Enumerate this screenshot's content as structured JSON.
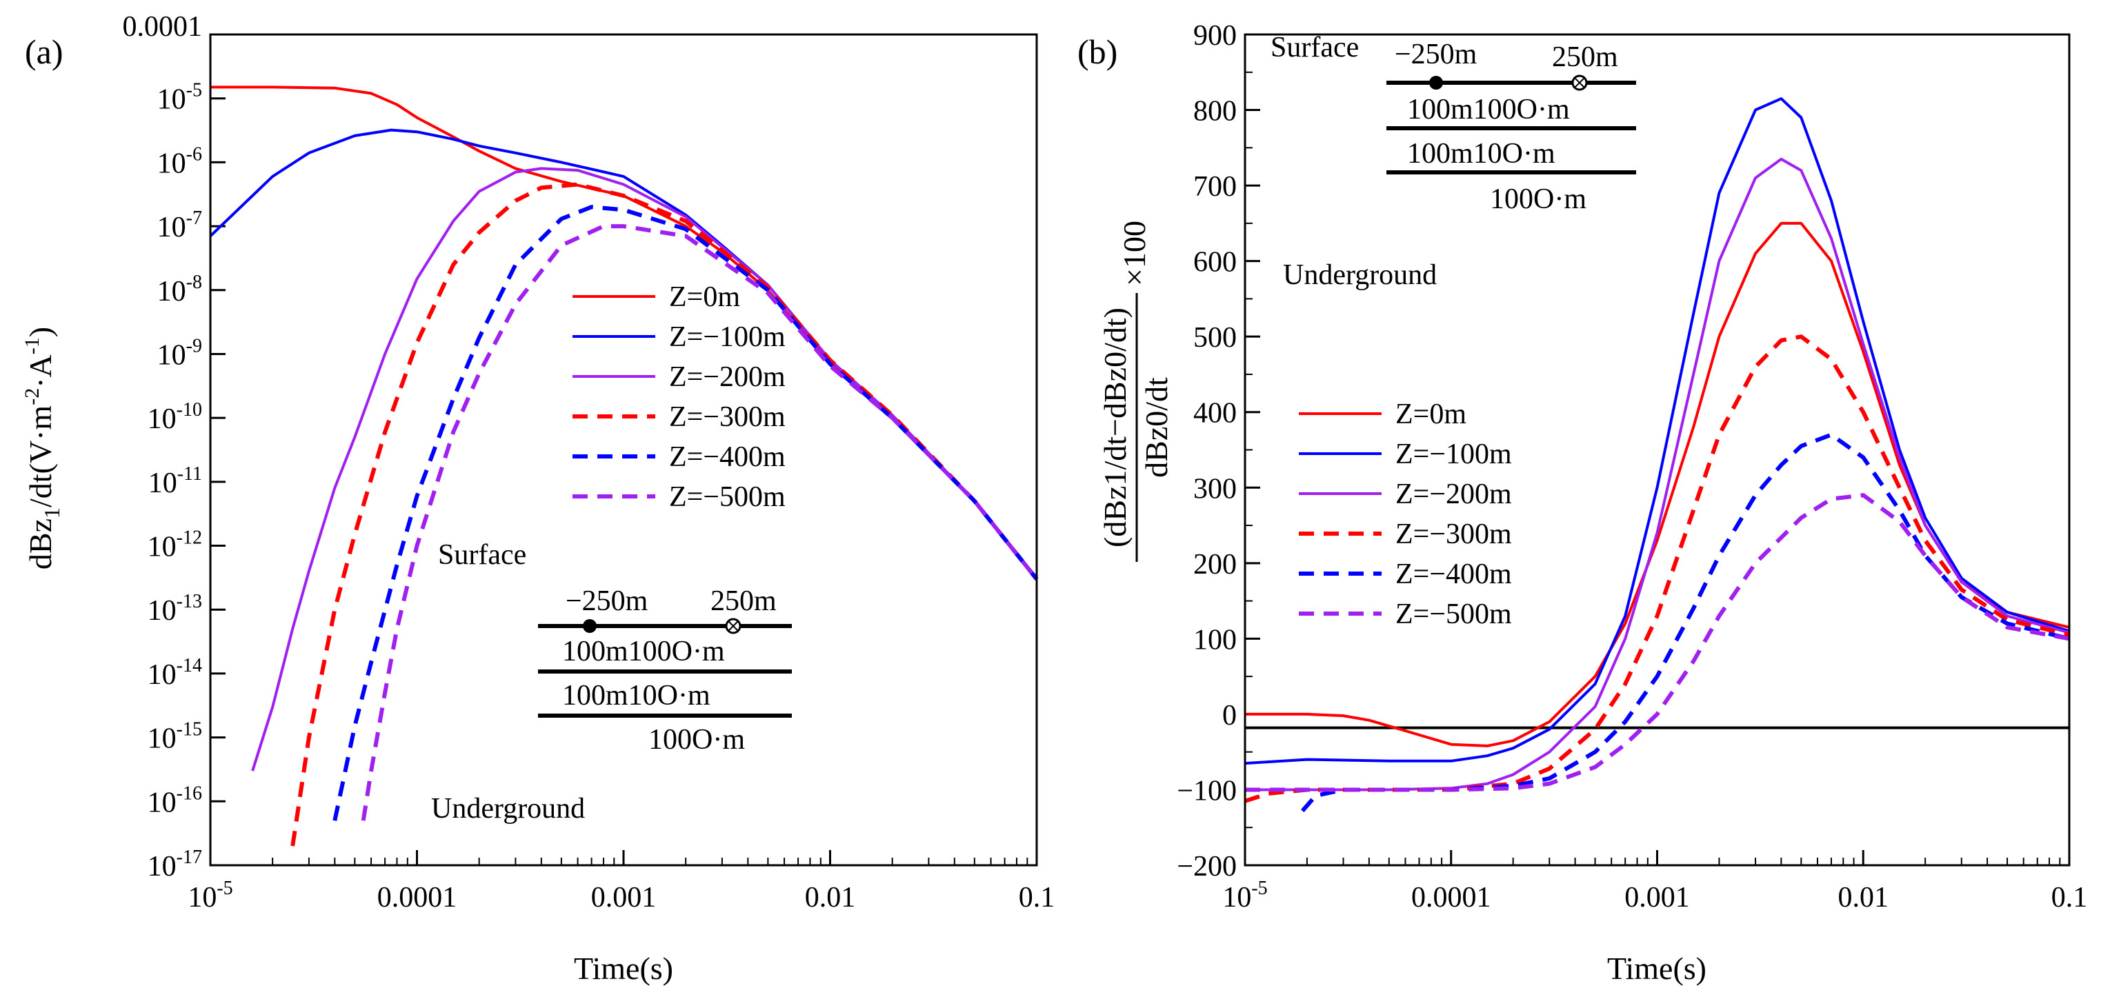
{
  "chart_data": [
    {
      "panel": "(a)",
      "type": "line",
      "title": "",
      "xlabel": "Time(s)",
      "ylabel": "dBz1/dt(V·m⁻²·A⁻¹)",
      "ylabel_parts": {
        "main": "dBz",
        "sub": "1",
        "rest": "/dt(V·m",
        "sup1": "-2",
        "mid": "·A",
        "sup2": "-1",
        "end": ")"
      },
      "xscale": "log",
      "yscale": "log",
      "xlim": [
        1e-05,
        0.1
      ],
      "ylim": [
        1e-17,
        0.0001
      ],
      "x_ticks": [
        {
          "value": 1e-05,
          "base": "10",
          "exp": "-5"
        },
        {
          "value": 0.0001,
          "label": "0.0001"
        },
        {
          "value": 0.001,
          "label": "0.001"
        },
        {
          "value": 0.01,
          "label": "0.01"
        },
        {
          "value": 0.1,
          "label": "0.1"
        }
      ],
      "y_ticks": [
        {
          "value": 0.0001,
          "label": "0.0001"
        },
        {
          "value": 1e-05,
          "base": "10",
          "exp": "-5"
        },
        {
          "value": 1e-06,
          "base": "10",
          "exp": "-6"
        },
        {
          "value": 1e-07,
          "base": "10",
          "exp": "-7"
        },
        {
          "value": 1e-08,
          "base": "10",
          "exp": "-8"
        },
        {
          "value": 1e-09,
          "base": "10",
          "exp": "-9"
        },
        {
          "value": 1e-10,
          "base": "10",
          "exp": "-10"
        },
        {
          "value": 1e-11,
          "base": "10",
          "exp": "-11"
        },
        {
          "value": 1e-12,
          "base": "10",
          "exp": "-12"
        },
        {
          "value": 1e-13,
          "base": "10",
          "exp": "-13"
        },
        {
          "value": 1e-14,
          "base": "10",
          "exp": "-14"
        },
        {
          "value": 1e-15,
          "base": "10",
          "exp": "-15"
        },
        {
          "value": 1e-16,
          "base": "10",
          "exp": "-16"
        },
        {
          "value": 1e-17,
          "base": "10",
          "exp": "-17"
        }
      ],
      "series": [
        {
          "name": "Z=0m",
          "color": "#ff0000",
          "dash": "solid",
          "x": [
            1e-05,
            2e-05,
            4e-05,
            6e-05,
            8e-05,
            0.0001,
            0.00015,
            0.0002,
            0.0003,
            0.0005,
            0.001,
            0.002,
            0.003,
            0.005,
            0.01,
            0.02,
            0.05,
            0.1
          ],
          "y": [
            1.5e-05,
            1.5e-05,
            1.45e-05,
            1.2e-05,
            8e-06,
            5e-06,
            2.5e-06,
            1.5e-06,
            8e-07,
            5e-07,
            3e-07,
            1e-07,
            4e-08,
            1e-08,
            7e-10,
            1e-10,
            5e-12,
            3e-13
          ]
        },
        {
          "name": "Z=−100m",
          "color": "#0000ff",
          "dash": "solid",
          "x": [
            1e-05,
            2e-05,
            3e-05,
            5e-05,
            7.5e-05,
            0.0001,
            0.00015,
            0.0002,
            0.0003,
            0.0005,
            0.001,
            0.002,
            0.003,
            0.005,
            0.01,
            0.02,
            0.05,
            0.1
          ],
          "y": [
            7e-08,
            6e-07,
            1.4e-06,
            2.6e-06,
            3.2e-06,
            3e-06,
            2.3e-06,
            1.8e-06,
            1.4e-06,
            1e-06,
            6e-07,
            1.5e-07,
            5e-08,
            1.2e-08,
            8e-10,
            1.1e-10,
            5e-12,
            3e-13
          ]
        },
        {
          "name": "Z=−200m",
          "color": "#a020f0",
          "dash": "solid",
          "x": [
            1.6e-05,
            2e-05,
            2.5e-05,
            3e-05,
            4e-05,
            5e-05,
            7e-05,
            0.0001,
            0.00015,
            0.0002,
            0.0003,
            0.0004,
            0.0006,
            0.001,
            0.002,
            0.005,
            0.01,
            0.02,
            0.05,
            0.1
          ],
          "y": [
            3e-16,
            3e-15,
            5e-14,
            4e-13,
            8e-12,
            5e-11,
            1e-09,
            1.5e-08,
            1.2e-07,
            3.5e-07,
            7e-07,
            8e-07,
            7.5e-07,
            4.5e-07,
            1.4e-07,
            1.2e-08,
            8e-10,
            1.1e-10,
            5e-12,
            3e-13
          ]
        },
        {
          "name": "Z=−300m",
          "color": "#ff0000",
          "dash": "dashed",
          "x": [
            2.5e-05,
            3e-05,
            4e-05,
            5e-05,
            7e-05,
            0.0001,
            0.00015,
            0.0002,
            0.0003,
            0.0004,
            0.0006,
            0.001,
            0.002,
            0.005,
            0.01,
            0.02,
            0.05,
            0.1
          ],
          "y": [
            2e-17,
            1e-15,
            1e-13,
            1.5e-12,
            6e-11,
            1.5e-09,
            2.5e-08,
            8e-08,
            2.5e-07,
            4e-07,
            4.5e-07,
            3e-07,
            1.2e-07,
            1.1e-08,
            8e-10,
            1.1e-10,
            5e-12,
            3e-13
          ]
        },
        {
          "name": "Z=−400m",
          "color": "#0000ff",
          "dash": "dashed",
          "x": [
            4e-05,
            5e-05,
            6e-05,
            8e-05,
            0.0001,
            0.00015,
            0.0002,
            0.0003,
            0.0005,
            0.0007,
            0.001,
            0.002,
            0.005,
            0.01,
            0.02,
            0.05,
            0.1
          ],
          "y": [
            5e-17,
            1.5e-15,
            1.5e-14,
            5e-13,
            6e-12,
            2e-10,
            1.8e-09,
            2.5e-08,
            1.3e-07,
            2e-07,
            1.8e-07,
            9e-08,
            1e-08,
            7e-10,
            1e-10,
            5e-12,
            3e-13
          ]
        },
        {
          "name": "Z=−500m",
          "color": "#a020f0",
          "dash": "dashed",
          "x": [
            5.5e-05,
            6e-05,
            7e-05,
            8e-05,
            0.0001,
            0.00015,
            0.0002,
            0.0003,
            0.0005,
            0.0008,
            0.001,
            0.002,
            0.005,
            0.01,
            0.02,
            0.05,
            0.1
          ],
          "y": [
            5e-17,
            3e-16,
            5e-15,
            5e-14,
            1e-12,
            6e-11,
            5e-10,
            6e-09,
            5e-08,
            1e-07,
            1e-07,
            7e-08,
            9e-09,
            6.5e-10,
            1e-10,
            5e-12,
            3e-13
          ]
        }
      ],
      "legend_position": "center-right",
      "annotations": {
        "surface": "Surface",
        "underground": "Underground",
        "tx_left": "−250m",
        "tx_right": "250m",
        "layer1": "100m100O·m",
        "layer2": "100m10O·m",
        "layer3": "100O·m"
      }
    },
    {
      "panel": "(b)",
      "type": "line",
      "title": "",
      "xlabel": "Time(s)",
      "ylabel_numerator": "(dBz1/dt−dBz0/dt)",
      "ylabel_denominator": "dBz0/dt",
      "ylabel_factor": "×100",
      "xscale": "log",
      "yscale": "linear",
      "xlim": [
        1e-05,
        0.1
      ],
      "ylim": [
        -200,
        900
      ],
      "x_ticks": [
        {
          "value": 1e-05,
          "base": "10",
          "exp": "-5"
        },
        {
          "value": 0.0001,
          "label": "0.0001"
        },
        {
          "value": 0.001,
          "label": "0.001"
        },
        {
          "value": 0.01,
          "label": "0.01"
        },
        {
          "value": 0.1,
          "label": "0.1"
        }
      ],
      "y_ticks": [
        {
          "value": 900,
          "label": "900"
        },
        {
          "value": 800,
          "label": "800"
        },
        {
          "value": 700,
          "label": "700"
        },
        {
          "value": 600,
          "label": "600"
        },
        {
          "value": 500,
          "label": "500"
        },
        {
          "value": 400,
          "label": "400"
        },
        {
          "value": 300,
          "label": "300"
        },
        {
          "value": 200,
          "label": "200"
        },
        {
          "value": 100,
          "label": "100"
        },
        {
          "value": 0,
          "label": "0"
        },
        {
          "value": -100,
          "label": "−100"
        },
        {
          "value": -200,
          "label": "−200"
        }
      ],
      "reference_line_y": -18,
      "series": [
        {
          "name": "Z=0m",
          "color": "#ff0000",
          "dash": "solid",
          "x": [
            1e-05,
            2e-05,
            3e-05,
            4e-05,
            6e-05,
            0.0001,
            0.00015,
            0.0002,
            0.0003,
            0.0005,
            0.0007,
            0.001,
            0.0015,
            0.002,
            0.003,
            0.004,
            0.005,
            0.007,
            0.01,
            0.015,
            0.02,
            0.03,
            0.05,
            0.1
          ],
          "y": [
            0,
            0,
            -2,
            -8,
            -22,
            -40,
            -42,
            -35,
            -10,
            50,
            120,
            230,
            380,
            500,
            610,
            650,
            650,
            600,
            480,
            330,
            250,
            175,
            135,
            115
          ]
        },
        {
          "name": "Z=−100m",
          "color": "#0000ff",
          "dash": "solid",
          "x": [
            1e-05,
            2e-05,
            5e-05,
            0.0001,
            0.00015,
            0.0002,
            0.0003,
            0.0005,
            0.0007,
            0.001,
            0.0015,
            0.002,
            0.003,
            0.004,
            0.005,
            0.007,
            0.01,
            0.015,
            0.02,
            0.03,
            0.05,
            0.1
          ],
          "y": [
            -65,
            -60,
            -62,
            -62,
            -55,
            -45,
            -20,
            40,
            130,
            300,
            530,
            690,
            800,
            815,
            790,
            680,
            520,
            350,
            260,
            180,
            135,
            110
          ]
        },
        {
          "name": "Z=−200m",
          "color": "#a020f0",
          "dash": "solid",
          "x": [
            1e-05,
            2e-05,
            5e-05,
            0.0001,
            0.00015,
            0.0002,
            0.0003,
            0.0005,
            0.0007,
            0.001,
            0.0015,
            0.002,
            0.003,
            0.004,
            0.005,
            0.007,
            0.01,
            0.015,
            0.02,
            0.03,
            0.05,
            0.1
          ],
          "y": [
            -100,
            -100,
            -100,
            -98,
            -92,
            -80,
            -50,
            10,
            100,
            240,
            450,
            600,
            710,
            735,
            720,
            630,
            490,
            340,
            250,
            175,
            130,
            108
          ]
        },
        {
          "name": "Z=−300m",
          "color": "#ff0000",
          "dash": "dashed",
          "x": [
            1e-05,
            1.3e-05,
            2e-05,
            5e-05,
            0.0001,
            0.0002,
            0.0003,
            0.0005,
            0.0007,
            0.001,
            0.0015,
            0.002,
            0.003,
            0.004,
            0.005,
            0.007,
            0.01,
            0.015,
            0.02,
            0.03,
            0.05,
            0.1
          ],
          "y": [
            -115,
            -105,
            -100,
            -100,
            -100,
            -92,
            -72,
            -20,
            40,
            130,
            270,
            370,
            460,
            495,
            500,
            470,
            400,
            300,
            230,
            165,
            125,
            105
          ]
        },
        {
          "name": "Z=−400m",
          "color": "#0000ff",
          "dash": "dashed",
          "x": [
            1.9e-05,
            2.2e-05,
            3e-05,
            5e-05,
            0.0001,
            0.0002,
            0.0003,
            0.0005,
            0.0007,
            0.001,
            0.0015,
            0.002,
            0.003,
            0.004,
            0.005,
            0.007,
            0.01,
            0.015,
            0.02,
            0.03,
            0.05,
            0.1
          ],
          "y": [
            -128,
            -108,
            -100,
            -100,
            -100,
            -95,
            -85,
            -50,
            -10,
            50,
            140,
            210,
            290,
            330,
            355,
            370,
            340,
            270,
            210,
            155,
            120,
            100
          ]
        },
        {
          "name": "Z=−500m",
          "color": "#a020f0",
          "dash": "dashed",
          "x": [
            1e-05,
            2e-05,
            5e-05,
            0.0001,
            0.0002,
            0.0003,
            0.0005,
            0.0007,
            0.001,
            0.0015,
            0.002,
            0.003,
            0.005,
            0.007,
            0.01,
            0.015,
            0.02,
            0.03,
            0.05,
            0.1
          ],
          "y": [
            -100,
            -100,
            -100,
            -100,
            -98,
            -92,
            -70,
            -40,
            0,
            70,
            130,
            200,
            260,
            285,
            290,
            255,
            210,
            155,
            115,
            100
          ]
        }
      ],
      "legend_position": "center-left",
      "annotations": {
        "surface": "Surface",
        "underground": "Underground",
        "tx_left": "−250m",
        "tx_right": "250m",
        "layer1": "100m100O·m",
        "layer2": "100m10O·m",
        "layer3": "100O·m"
      }
    }
  ]
}
